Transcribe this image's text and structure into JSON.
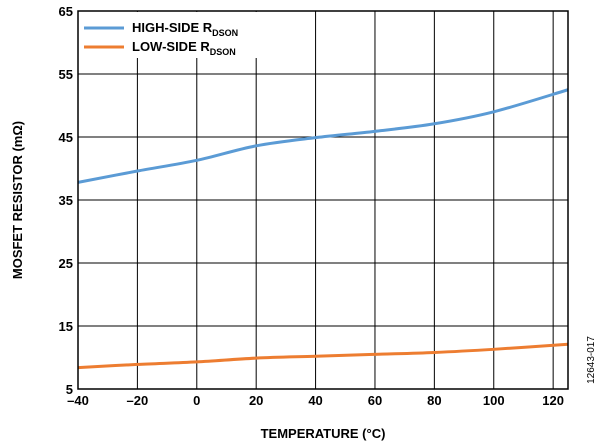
{
  "chart_data": {
    "type": "line",
    "title": "",
    "xlabel": "TEMPERATURE (°C)",
    "ylabel": "MOSFET RESISTOR (mΩ)",
    "xlim": [
      -40,
      125
    ],
    "ylim": [
      5,
      65
    ],
    "xticks": [
      -40,
      -20,
      0,
      20,
      40,
      60,
      80,
      100,
      120
    ],
    "yticks": [
      5,
      15,
      25,
      35,
      45,
      55,
      65
    ],
    "x_tick_labels": [
      "–40",
      "–20",
      "0",
      "20",
      "40",
      "60",
      "80",
      "100",
      "120"
    ],
    "y_tick_labels": [
      "5",
      "15",
      "25",
      "35",
      "45",
      "55",
      "65"
    ],
    "grid": true,
    "legend_position": "top-left",
    "figure_id": "12643-017",
    "series": [
      {
        "name": "HIGH-SIDE R",
        "name_subscript": "DSON",
        "color": "#5b9bd5",
        "x": [
          -40,
          -20,
          0,
          20,
          40,
          60,
          80,
          100,
          125
        ],
        "y": [
          37.8,
          39.6,
          41.3,
          43.6,
          44.9,
          45.9,
          47.1,
          49.0,
          52.5
        ]
      },
      {
        "name": "LOW-SIDE R",
        "name_subscript": "DSON",
        "color": "#ed7d31",
        "x": [
          -40,
          -20,
          0,
          20,
          40,
          60,
          80,
          100,
          125
        ],
        "y": [
          8.4,
          8.9,
          9.3,
          9.9,
          10.2,
          10.5,
          10.8,
          11.3,
          12.1
        ]
      }
    ]
  }
}
